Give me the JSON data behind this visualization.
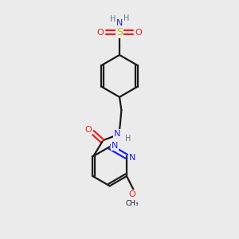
{
  "background_color": "#ebebeb",
  "bond_color": "#1a1a1a",
  "N_color": "#2020ee",
  "O_color": "#ee2020",
  "S_color": "#bbbb00",
  "H_color": "#5a7a8a",
  "figsize": [
    3.0,
    3.0
  ],
  "dpi": 100,
  "xlim": [
    0,
    10
  ],
  "ylim": [
    0,
    10
  ]
}
